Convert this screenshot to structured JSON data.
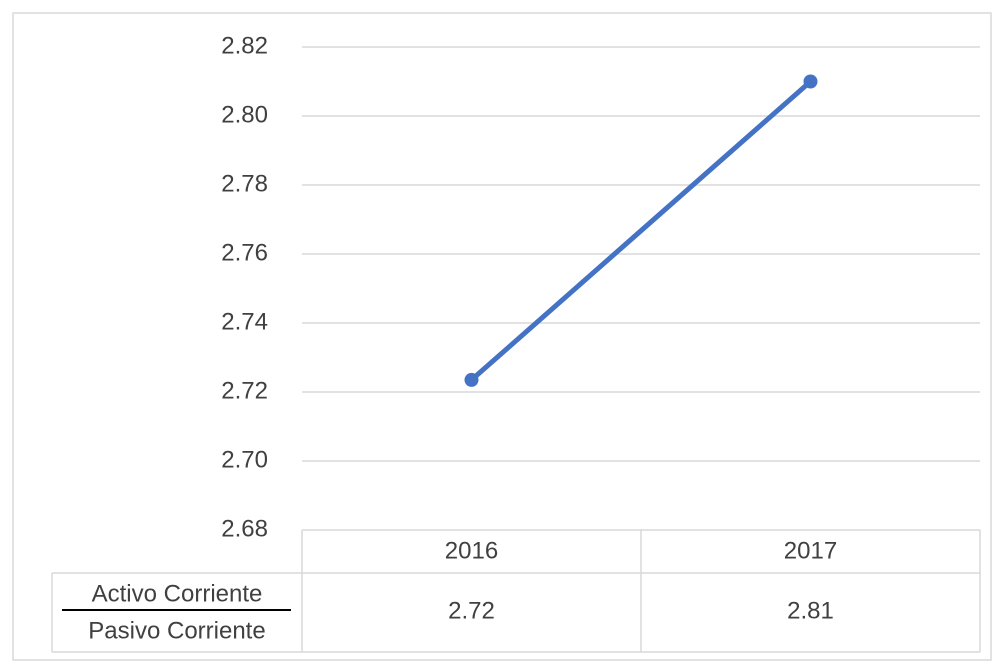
{
  "chart_data": {
    "type": "line",
    "categories": [
      "2016",
      "2017"
    ],
    "series": [
      {
        "color": "#4472c4",
        "values": [
          2.7235,
          2.81
        ],
        "value_labels": [
          "2.72",
          "2.81"
        ]
      }
    ],
    "row_label": {
      "numerator": "Activo Corriente",
      "denominator": "Pasivo Corriente"
    },
    "ylim": [
      2.68,
      2.82
    ],
    "yticks": [
      2.68,
      {
        "value": 2.7,
        "label": "2.70"
      },
      2.72,
      2.74,
      2.76,
      2.78,
      {
        "value": 2.8,
        "label": "2.80"
      },
      2.82
    ],
    "grid": true
  }
}
